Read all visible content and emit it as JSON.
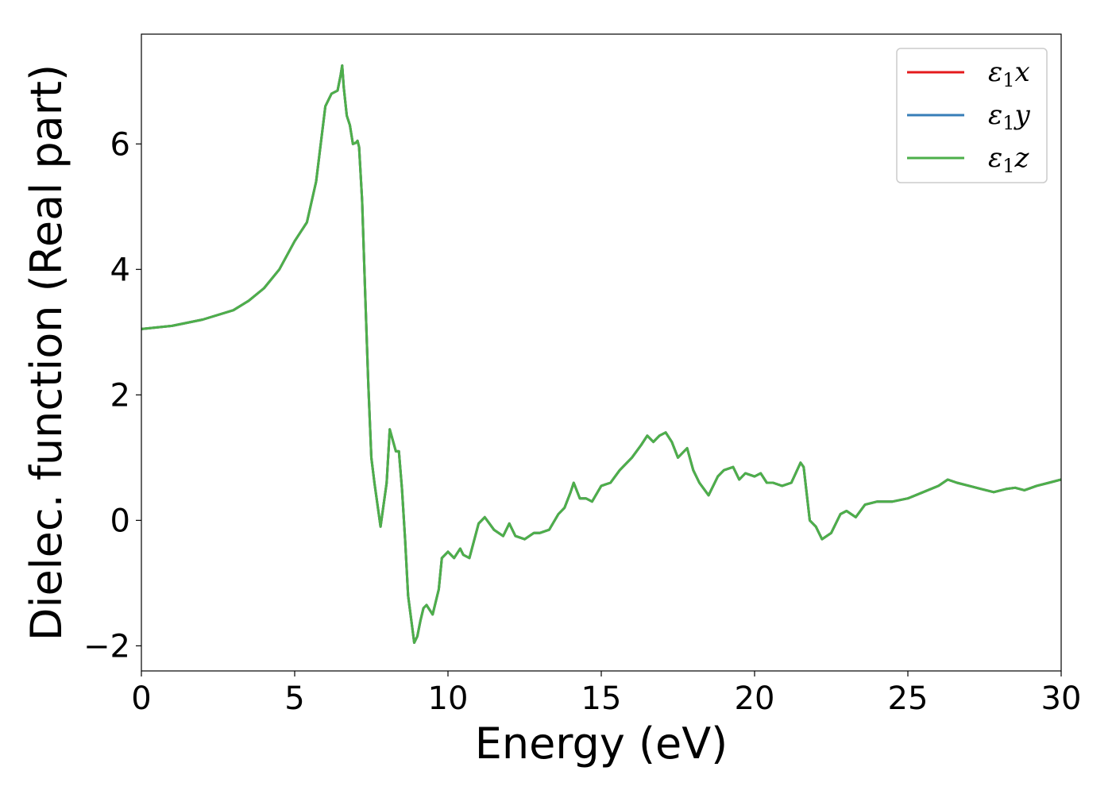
{
  "chart_data": {
    "type": "line",
    "title": "",
    "xlabel": "Energy (eV)",
    "ylabel": "Dielec. function (Real part)",
    "xlim": [
      0,
      30
    ],
    "ylim": [
      -2.4,
      7.75
    ],
    "xticks": [
      0,
      5,
      10,
      15,
      20,
      25,
      30
    ],
    "xtick_labels": [
      "0",
      "5",
      "10",
      "15",
      "20",
      "25",
      "30"
    ],
    "yticks": [
      -2,
      0,
      2,
      4,
      6
    ],
    "ytick_labels": [
      "−2",
      "0",
      "2",
      "4",
      "6"
    ],
    "grid": false,
    "legend": {
      "position": "top-right"
    },
    "series": [
      {
        "name": "ε1x",
        "name_base": "ε",
        "name_sub": "1",
        "name_tail": "x",
        "color": "#e41a1c",
        "x": [
          0,
          1,
          2,
          3,
          3.5,
          4,
          4.5,
          5,
          5.4,
          5.7,
          6.0,
          6.2,
          6.4,
          6.5,
          6.55,
          6.6,
          6.7,
          6.8,
          6.9,
          7.0,
          7.05,
          7.1,
          7.2,
          7.3,
          7.4,
          7.5,
          7.6,
          7.8,
          8.0,
          8.1,
          8.3,
          8.4,
          8.5,
          8.6,
          8.7,
          8.9,
          9.0,
          9.1,
          9.2,
          9.3,
          9.5,
          9.7,
          9.8,
          10.0,
          10.2,
          10.4,
          10.5,
          10.7,
          11.0,
          11.2,
          11.5,
          11.8,
          12.0,
          12.2,
          12.5,
          12.8,
          13.0,
          13.3,
          13.6,
          13.8,
          14.0,
          14.1,
          14.3,
          14.5,
          14.7,
          15.0,
          15.3,
          15.6,
          16.0,
          16.3,
          16.5,
          16.7,
          16.9,
          17.1,
          17.3,
          17.5,
          17.8,
          18.0,
          18.2,
          18.5,
          18.8,
          19.0,
          19.3,
          19.5,
          19.7,
          20.0,
          20.2,
          20.4,
          20.6,
          20.9,
          21.2,
          21.5,
          21.6,
          21.8,
          22.0,
          22.2,
          22.5,
          22.8,
          23.0,
          23.3,
          23.6,
          24.0,
          24.5,
          25.0,
          25.5,
          26.0,
          26.3,
          26.6,
          27.0,
          27.4,
          27.8,
          28.2,
          28.5,
          28.8,
          29.2,
          29.6,
          30.0
        ],
        "y": [
          3.05,
          3.1,
          3.2,
          3.35,
          3.5,
          3.7,
          4.0,
          4.45,
          4.75,
          5.4,
          6.6,
          6.8,
          6.85,
          7.1,
          7.25,
          6.9,
          6.45,
          6.3,
          6.0,
          6.02,
          6.05,
          5.95,
          5.1,
          3.6,
          2.2,
          1.0,
          0.6,
          -0.1,
          0.6,
          1.45,
          1.1,
          1.1,
          0.5,
          -0.3,
          -1.2,
          -1.95,
          -1.85,
          -1.6,
          -1.4,
          -1.35,
          -1.5,
          -1.1,
          -0.6,
          -0.5,
          -0.6,
          -0.45,
          -0.55,
          -0.6,
          -0.05,
          0.05,
          -0.15,
          -0.25,
          -0.05,
          -0.25,
          -0.3,
          -0.2,
          -0.2,
          -0.15,
          0.1,
          0.2,
          0.45,
          0.6,
          0.35,
          0.35,
          0.3,
          0.55,
          0.6,
          0.8,
          1.0,
          1.2,
          1.35,
          1.25,
          1.35,
          1.4,
          1.25,
          1.0,
          1.15,
          0.8,
          0.6,
          0.4,
          0.7,
          0.8,
          0.85,
          0.65,
          0.75,
          0.7,
          0.75,
          0.6,
          0.6,
          0.55,
          0.6,
          0.92,
          0.85,
          0.0,
          -0.1,
          -0.3,
          -0.2,
          0.1,
          0.15,
          0.05,
          0.25,
          0.3,
          0.3,
          0.35,
          0.45,
          0.55,
          0.65,
          0.6,
          0.55,
          0.5,
          0.45,
          0.5,
          0.52,
          0.48,
          0.55,
          0.6,
          0.65
        ]
      },
      {
        "name": "ε1y",
        "name_base": "ε",
        "name_sub": "1",
        "name_tail": "y",
        "color": "#377eb8",
        "x": [
          0,
          1,
          2,
          3,
          3.5,
          4,
          4.5,
          5,
          5.4,
          5.7,
          6.0,
          6.2,
          6.4,
          6.5,
          6.55,
          6.6,
          6.7,
          6.8,
          6.9,
          7.0,
          7.05,
          7.1,
          7.2,
          7.3,
          7.4,
          7.5,
          7.6,
          7.8,
          8.0,
          8.1,
          8.3,
          8.4,
          8.5,
          8.6,
          8.7,
          8.9,
          9.0,
          9.1,
          9.2,
          9.3,
          9.5,
          9.7,
          9.8,
          10.0,
          10.2,
          10.4,
          10.5,
          10.7,
          11.0,
          11.2,
          11.5,
          11.8,
          12.0,
          12.2,
          12.5,
          12.8,
          13.0,
          13.3,
          13.6,
          13.8,
          14.0,
          14.1,
          14.3,
          14.5,
          14.7,
          15.0,
          15.3,
          15.6,
          16.0,
          16.3,
          16.5,
          16.7,
          16.9,
          17.1,
          17.3,
          17.5,
          17.8,
          18.0,
          18.2,
          18.5,
          18.8,
          19.0,
          19.3,
          19.5,
          19.7,
          20.0,
          20.2,
          20.4,
          20.6,
          20.9,
          21.2,
          21.5,
          21.6,
          21.8,
          22.0,
          22.2,
          22.5,
          22.8,
          23.0,
          23.3,
          23.6,
          24.0,
          24.5,
          25.0,
          25.5,
          26.0,
          26.3,
          26.6,
          27.0,
          27.4,
          27.8,
          28.2,
          28.5,
          28.8,
          29.2,
          29.6,
          30.0
        ],
        "y": [
          3.05,
          3.1,
          3.2,
          3.35,
          3.5,
          3.7,
          4.0,
          4.45,
          4.75,
          5.4,
          6.6,
          6.8,
          6.85,
          7.1,
          7.25,
          6.9,
          6.45,
          6.3,
          6.0,
          6.02,
          6.05,
          5.95,
          5.1,
          3.6,
          2.2,
          1.0,
          0.6,
          -0.1,
          0.6,
          1.45,
          1.1,
          1.1,
          0.5,
          -0.3,
          -1.2,
          -1.95,
          -1.85,
          -1.6,
          -1.4,
          -1.35,
          -1.5,
          -1.1,
          -0.6,
          -0.5,
          -0.6,
          -0.45,
          -0.55,
          -0.6,
          -0.05,
          0.05,
          -0.15,
          -0.25,
          -0.05,
          -0.25,
          -0.3,
          -0.2,
          -0.2,
          -0.15,
          0.1,
          0.2,
          0.45,
          0.6,
          0.35,
          0.35,
          0.3,
          0.55,
          0.6,
          0.8,
          1.0,
          1.2,
          1.35,
          1.25,
          1.35,
          1.4,
          1.25,
          1.0,
          1.15,
          0.8,
          0.6,
          0.4,
          0.7,
          0.8,
          0.85,
          0.65,
          0.75,
          0.7,
          0.75,
          0.6,
          0.6,
          0.55,
          0.6,
          0.92,
          0.85,
          0.0,
          -0.1,
          -0.3,
          -0.2,
          0.1,
          0.15,
          0.05,
          0.25,
          0.3,
          0.3,
          0.35,
          0.45,
          0.55,
          0.65,
          0.6,
          0.55,
          0.5,
          0.45,
          0.5,
          0.52,
          0.48,
          0.55,
          0.6,
          0.65
        ]
      },
      {
        "name": "ε1z",
        "name_base": "ε",
        "name_sub": "1",
        "name_tail": "z",
        "color": "#4daf4a",
        "x": [
          0,
          1,
          2,
          3,
          3.5,
          4,
          4.5,
          5,
          5.4,
          5.7,
          6.0,
          6.2,
          6.4,
          6.5,
          6.55,
          6.6,
          6.7,
          6.8,
          6.9,
          7.0,
          7.05,
          7.1,
          7.2,
          7.3,
          7.4,
          7.5,
          7.6,
          7.8,
          8.0,
          8.1,
          8.3,
          8.4,
          8.5,
          8.6,
          8.7,
          8.9,
          9.0,
          9.1,
          9.2,
          9.3,
          9.5,
          9.7,
          9.8,
          10.0,
          10.2,
          10.4,
          10.5,
          10.7,
          11.0,
          11.2,
          11.5,
          11.8,
          12.0,
          12.2,
          12.5,
          12.8,
          13.0,
          13.3,
          13.6,
          13.8,
          14.0,
          14.1,
          14.3,
          14.5,
          14.7,
          15.0,
          15.3,
          15.6,
          16.0,
          16.3,
          16.5,
          16.7,
          16.9,
          17.1,
          17.3,
          17.5,
          17.8,
          18.0,
          18.2,
          18.5,
          18.8,
          19.0,
          19.3,
          19.5,
          19.7,
          20.0,
          20.2,
          20.4,
          20.6,
          20.9,
          21.2,
          21.5,
          21.6,
          21.8,
          22.0,
          22.2,
          22.5,
          22.8,
          23.0,
          23.3,
          23.6,
          24.0,
          24.5,
          25.0,
          25.5,
          26.0,
          26.3,
          26.6,
          27.0,
          27.4,
          27.8,
          28.2,
          28.5,
          28.8,
          29.2,
          29.6,
          30.0
        ],
        "y": [
          3.05,
          3.1,
          3.2,
          3.35,
          3.5,
          3.7,
          4.0,
          4.45,
          4.75,
          5.4,
          6.6,
          6.8,
          6.85,
          7.1,
          7.25,
          6.9,
          6.45,
          6.3,
          6.0,
          6.02,
          6.05,
          5.95,
          5.1,
          3.6,
          2.2,
          1.0,
          0.6,
          -0.1,
          0.6,
          1.45,
          1.1,
          1.1,
          0.5,
          -0.3,
          -1.2,
          -1.95,
          -1.85,
          -1.6,
          -1.4,
          -1.35,
          -1.5,
          -1.1,
          -0.6,
          -0.5,
          -0.6,
          -0.45,
          -0.55,
          -0.6,
          -0.05,
          0.05,
          -0.15,
          -0.25,
          -0.05,
          -0.25,
          -0.3,
          -0.2,
          -0.2,
          -0.15,
          0.1,
          0.2,
          0.45,
          0.6,
          0.35,
          0.35,
          0.3,
          0.55,
          0.6,
          0.8,
          1.0,
          1.2,
          1.35,
          1.25,
          1.35,
          1.4,
          1.25,
          1.0,
          1.15,
          0.8,
          0.6,
          0.4,
          0.7,
          0.8,
          0.85,
          0.65,
          0.75,
          0.7,
          0.75,
          0.6,
          0.6,
          0.55,
          0.6,
          0.92,
          0.85,
          0.0,
          -0.1,
          -0.3,
          -0.2,
          0.1,
          0.15,
          0.05,
          0.25,
          0.3,
          0.3,
          0.35,
          0.45,
          0.55,
          0.65,
          0.6,
          0.55,
          0.5,
          0.45,
          0.5,
          0.52,
          0.48,
          0.55,
          0.6,
          0.65
        ]
      }
    ]
  }
}
